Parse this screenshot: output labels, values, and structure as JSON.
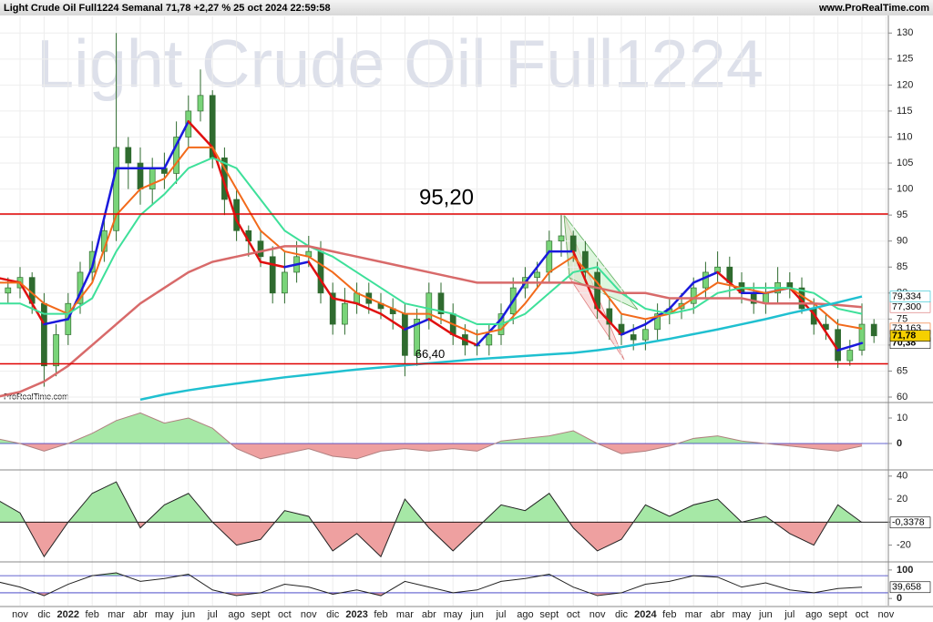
{
  "header": {
    "title": "Light Crude Oil Full1224 Semanal 71,78 +2,27 % 25 oct 2024 22:59:58",
    "site": "www.ProRealTime.com"
  },
  "chart_data": [
    {
      "type": "candlestick",
      "watermark": "Light Crude Oil Full1224",
      "credit": "ProRealTime.com",
      "xticks": [
        "nov",
        "dic",
        "2022",
        "feb",
        "mar",
        "abr",
        "may",
        "jun",
        "jul",
        "ago",
        "sept",
        "oct",
        "nov",
        "dic",
        "2023",
        "feb",
        "mar",
        "abr",
        "may",
        "jun",
        "jul",
        "ago",
        "sept",
        "oct",
        "nov",
        "dic",
        "2024",
        "feb",
        "mar",
        "abr",
        "may",
        "jun",
        "jul",
        "ago",
        "sept",
        "oct",
        "nov"
      ],
      "open": [
        80,
        81,
        83,
        78,
        66,
        72,
        78,
        84,
        88,
        92,
        108,
        105,
        100,
        104,
        103,
        110,
        115,
        118,
        106,
        98,
        92,
        90,
        87,
        80,
        84,
        87,
        88,
        80,
        74,
        78,
        80,
        78,
        77,
        76,
        68,
        75,
        80,
        76,
        72,
        70,
        70,
        72,
        76,
        81,
        83,
        84,
        90,
        91,
        88,
        84,
        77,
        74,
        72,
        71,
        73,
        76,
        77,
        78,
        81,
        84,
        85,
        82,
        80,
        78,
        80,
        82,
        81,
        77,
        74,
        73,
        67,
        69,
        74
      ],
      "high": [
        83,
        85,
        84,
        80,
        74,
        80,
        86,
        90,
        95,
        130,
        110,
        108,
        106,
        107,
        113,
        118,
        123,
        119,
        108,
        100,
        93,
        92,
        89,
        88,
        90,
        91,
        90,
        82,
        81,
        82,
        82,
        80,
        79,
        78,
        77,
        82,
        82,
        78,
        74,
        73,
        74,
        78,
        83,
        85,
        86,
        92,
        95,
        92,
        90,
        86,
        79,
        76,
        74,
        75,
        78,
        79,
        80,
        83,
        86,
        88,
        87,
        84,
        82,
        82,
        85,
        84,
        83,
        79,
        76,
        75,
        71,
        78,
        75
      ],
      "low": [
        78,
        79,
        76,
        62,
        64,
        70,
        76,
        82,
        86,
        90,
        100,
        97,
        97,
        100,
        101,
        108,
        113,
        104,
        95,
        90,
        87,
        85,
        78,
        78,
        82,
        85,
        78,
        72,
        72,
        76,
        76,
        75,
        73,
        64,
        66,
        73,
        74,
        70,
        68,
        68,
        68,
        70,
        74,
        79,
        81,
        82,
        87,
        86,
        82,
        75,
        71,
        70,
        69,
        69,
        71,
        74,
        75,
        76,
        79,
        82,
        79,
        78,
        76,
        76,
        78,
        79,
        76,
        72,
        71,
        65.6,
        66,
        68,
        70.4
      ],
      "close": [
        81,
        83,
        78,
        66,
        72,
        78,
        84,
        88,
        92,
        108,
        105,
        100,
        104,
        103,
        110,
        115,
        118,
        106,
        98,
        92,
        90,
        87,
        80,
        84,
        87,
        88,
        80,
        74,
        78,
        80,
        78,
        77,
        76,
        68,
        75,
        80,
        76,
        72,
        70,
        70,
        72,
        76,
        81,
        83,
        84,
        90,
        91,
        88,
        84,
        77,
        74,
        72,
        71,
        73,
        76,
        77,
        78,
        81,
        84,
        85,
        82,
        80,
        78,
        80,
        82,
        81,
        77,
        74,
        73,
        67,
        69,
        74,
        71.78
      ],
      "close_label": "71,78",
      "up_color": "#79d479",
      "down_color": "#2f6b2f",
      "ylim": [
        59.3,
        133.2
      ],
      "yticks": [
        60,
        65,
        70,
        75,
        80,
        85,
        90,
        95,
        100,
        105,
        110,
        115,
        120,
        125,
        130
      ],
      "grid": true,
      "levels": [
        {
          "value": 95.2,
          "label": "95,20",
          "color": "#e00000"
        },
        {
          "value": 66.4,
          "label": "66,40",
          "color": "#e00000"
        }
      ],
      "series": [
        {
          "color": "#1a1adc",
          "down_color": "#e01010",
          "width": 2.5,
          "values": [
            83,
            82,
            74,
            75,
            85,
            104,
            104,
            104,
            113,
            108,
            94,
            86,
            85,
            86,
            79,
            78,
            76,
            73,
            75,
            72,
            70,
            75,
            82,
            88,
            88,
            77,
            72,
            74,
            77,
            82,
            84,
            80,
            80,
            81,
            76,
            69,
            70.38
          ],
          "last_label": "70,38"
        },
        {
          "color": "#f26a1b",
          "width": 2,
          "values": [
            82,
            82,
            78,
            76,
            82,
            95,
            100,
            102,
            108,
            108,
            100,
            92,
            88,
            87,
            84,
            80,
            78,
            76,
            76,
            74,
            72,
            73,
            78,
            84,
            87,
            82,
            76,
            75,
            76,
            79,
            82,
            81,
            80,
            81,
            78,
            74,
            73.163
          ],
          "last_label": "73,163"
        },
        {
          "color": "#3ee09a",
          "width": 2,
          "values": [
            78,
            78,
            76,
            76,
            79,
            88,
            95,
            99,
            104,
            106,
            104,
            98,
            92,
            89,
            87,
            84,
            81,
            78,
            77,
            76,
            74,
            74,
            76,
            80,
            84,
            85,
            80,
            77,
            76,
            77,
            80,
            81,
            81,
            81,
            80,
            77,
            76
          ]
        },
        {
          "color": "#d86a6a",
          "width": 2.5,
          "values": [
            60,
            61,
            63,
            66,
            70,
            74,
            78,
            81,
            84,
            86,
            87,
            88,
            89,
            89,
            88,
            87,
            86,
            85,
            84,
            83,
            82,
            82,
            82,
            82,
            82,
            81,
            80,
            80,
            79,
            79,
            79,
            79,
            78,
            78,
            78,
            77.7,
            77.3
          ],
          "last_label": "77,300"
        },
        {
          "color": "#1fc0d0",
          "width": 2.5,
          "values": [
            null,
            null,
            null,
            null,
            null,
            null,
            59.5,
            60.5,
            61.3,
            62,
            62.6,
            63.2,
            63.8,
            64.3,
            64.8,
            65.3,
            65.7,
            66.1,
            66.5,
            66.9,
            67.3,
            67.6,
            67.9,
            68.2,
            68.5,
            69,
            69.6,
            70.4,
            71.2,
            72.1,
            73,
            74,
            75,
            76.1,
            77.1,
            78.2,
            79.334
          ],
          "last_label": "79,334"
        }
      ]
    },
    {
      "type": "area",
      "ylim": [
        -10,
        15
      ],
      "yticks": [
        10,
        0
      ],
      "levels": [
        0
      ],
      "level_color": "#3030c0",
      "fill_above": 0,
      "fill_below": 0,
      "above_color": "#a6e8a6",
      "below_color": "#eea0a0",
      "line_color": "#b08080",
      "values": [
        2,
        0,
        -3,
        0,
        4,
        9,
        12,
        8,
        10,
        6,
        -2,
        -6,
        -4,
        -2,
        -5,
        -6,
        -3,
        -2,
        -3,
        -2,
        -3,
        1,
        2,
        3,
        5,
        0,
        -4,
        -3,
        -1,
        2,
        3,
        1,
        0,
        -1,
        -2,
        -3,
        -1
      ]
    },
    {
      "type": "area",
      "ylim": [
        -33,
        43
      ],
      "yticks": [
        40,
        20,
        0,
        -20
      ],
      "levels": [
        0
      ],
      "level_color": "#000",
      "fill_above": 0,
      "fill_below": 0,
      "above_color": "#a6e8a6",
      "below_color": "#eea0a0",
      "line_color": "#222",
      "values": [
        20,
        8,
        -30,
        0,
        25,
        35,
        -5,
        15,
        25,
        0,
        -20,
        -15,
        10,
        5,
        -25,
        -10,
        -30,
        20,
        -5,
        -25,
        -5,
        15,
        10,
        25,
        -5,
        -25,
        -15,
        15,
        5,
        15,
        20,
        0,
        5,
        -10,
        -20,
        15,
        -0.3378
      ],
      "last_label": "-0,3378"
    },
    {
      "type": "area",
      "ylim": [
        -25,
        122
      ],
      "yticks": [
        100,
        0
      ],
      "levels": [
        80,
        20
      ],
      "level_color": "#3030c0",
      "fill_above": 80,
      "fill_below": 20,
      "above_color": "#a6e8a6",
      "below_color": "#eea0a0",
      "line_color": "#222",
      "values": [
        60,
        40,
        10,
        50,
        80,
        90,
        60,
        70,
        85,
        30,
        10,
        20,
        50,
        40,
        15,
        30,
        10,
        60,
        40,
        20,
        30,
        60,
        70,
        85,
        40,
        10,
        20,
        50,
        60,
        80,
        75,
        40,
        55,
        30,
        20,
        35,
        39.658
      ],
      "last_label": "39,658"
    }
  ]
}
